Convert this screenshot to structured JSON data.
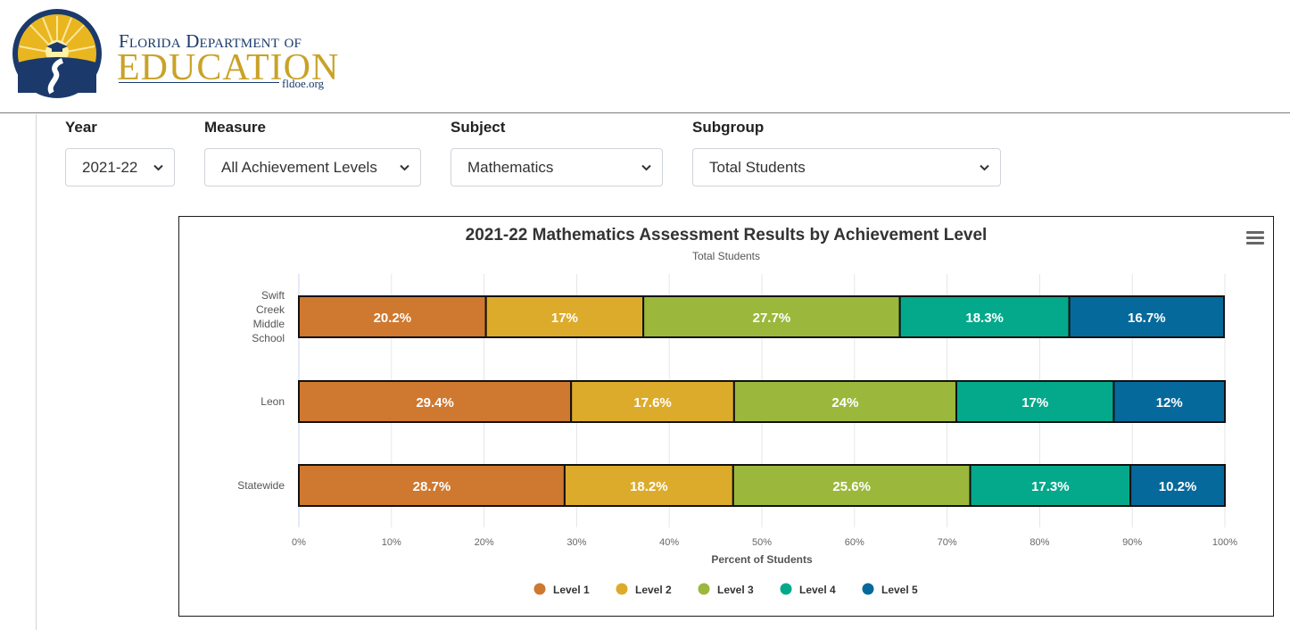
{
  "header": {
    "logo_line1": "Florida Department of",
    "logo_line2": "EDUCATION",
    "logo_url": "fldoe.org"
  },
  "filters": {
    "year": {
      "label": "Year",
      "value": "2021-22"
    },
    "measure": {
      "label": "Measure",
      "value": "All Achievement Levels"
    },
    "subject": {
      "label": "Subject",
      "value": "Mathematics"
    },
    "subgroup": {
      "label": "Subgroup",
      "value": "Total Students"
    }
  },
  "colors": {
    "level1": "#cf782f",
    "level2": "#ddab2b",
    "level3": "#9bb83c",
    "level4": "#04a98b",
    "level5": "#06699b",
    "logo_navy": "#1b3a6b",
    "logo_gold": "#c9a227"
  },
  "icons": {
    "menu": "hamburger-menu-icon",
    "select": "chevron-down-icon"
  },
  "chart_data": {
    "type": "bar",
    "orientation": "horizontal",
    "stacked": true,
    "title": "2021-22 Mathematics Assessment Results by Achievement Level",
    "subtitle": "Total Students",
    "categories": [
      "Swift Creek Middle School",
      "Leon",
      "Statewide"
    ],
    "series": [
      {
        "name": "Level 1",
        "values": [
          20.2,
          29.4,
          28.7
        ]
      },
      {
        "name": "Level 2",
        "values": [
          17,
          17.6,
          18.2
        ]
      },
      {
        "name": "Level 3",
        "values": [
          27.7,
          24,
          25.6
        ]
      },
      {
        "name": "Level 4",
        "values": [
          18.3,
          17,
          17.3
        ]
      },
      {
        "name": "Level 5",
        "values": [
          16.7,
          12,
          10.2
        ]
      }
    ],
    "xlabel": "Percent of Students",
    "xlim": [
      0,
      100
    ],
    "xticks": [
      "0%",
      "10%",
      "20%",
      "30%",
      "40%",
      "50%",
      "60%",
      "70%",
      "80%",
      "90%",
      "100%"
    ],
    "value_suffix": "%",
    "grid": "vertical",
    "legend_position": "bottom-center"
  }
}
